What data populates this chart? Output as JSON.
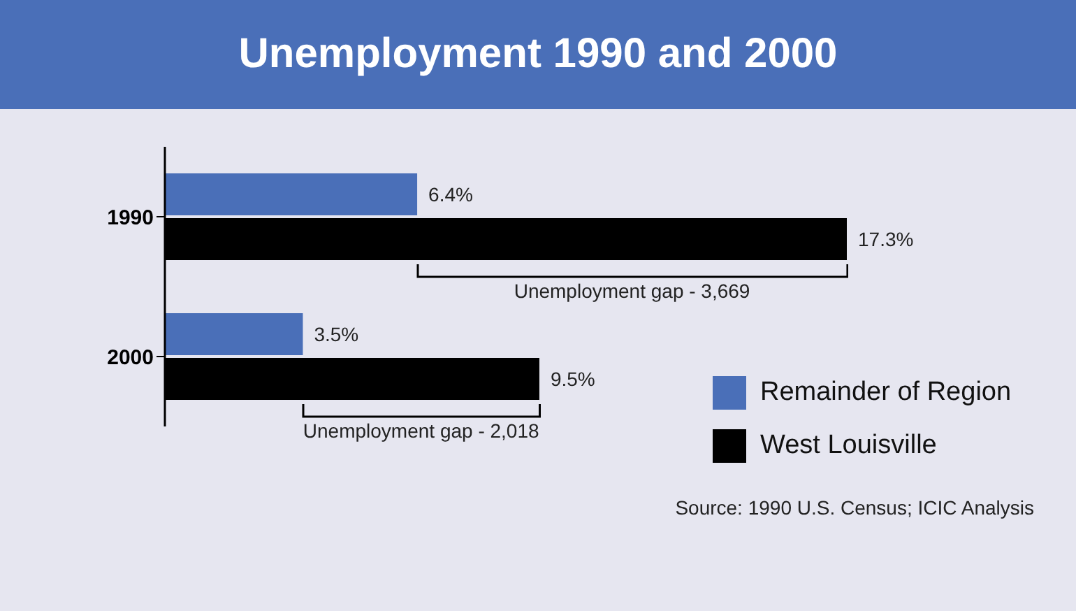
{
  "chart_data": {
    "type": "bar",
    "orientation": "horizontal",
    "title": "Unemployment 1990 and 2000",
    "categories": [
      "1990",
      "2000"
    ],
    "series": [
      {
        "name": "Remainder of Region",
        "color": "#4a6fb8",
        "values": [
          6.4,
          3.5
        ],
        "value_labels": [
          "6.4%",
          "3.5%"
        ]
      },
      {
        "name": "West Louisville",
        "color": "#000000",
        "values": [
          17.3,
          9.5
        ],
        "value_labels": [
          "17.3%",
          "9.5%"
        ]
      }
    ],
    "annotations": [
      "Unemployment gap - 3,669",
      "Unemployment gap - 2,018",
      "Source: 1990 U.S. Census; ICIC Analysis"
    ],
    "legend": "bottom right",
    "grid": false,
    "tick_labels": "y"
  }
}
